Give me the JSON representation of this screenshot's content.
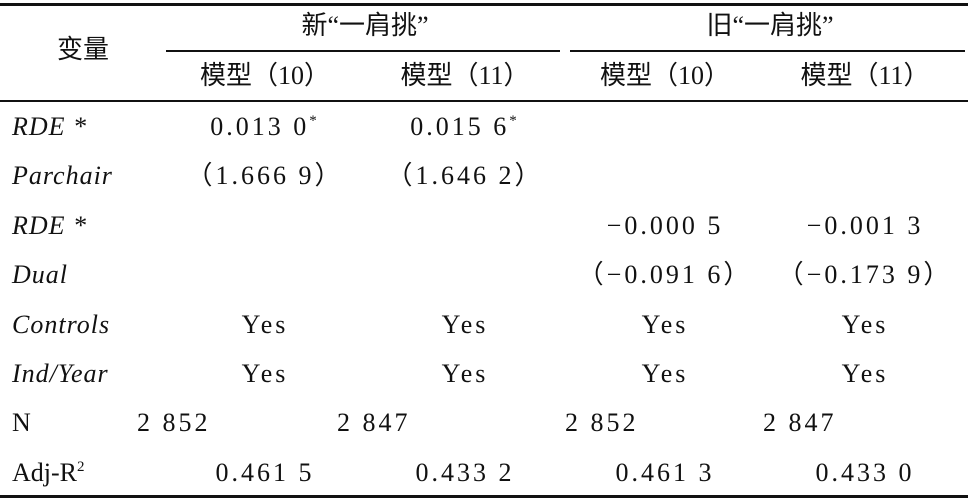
{
  "header": {
    "row_label": "变量",
    "groups": [
      "新“一肩挑”",
      "旧“一肩挑”"
    ],
    "columns": [
      "模型（10）",
      "模型（11）",
      "模型（10）",
      "模型（11）"
    ]
  },
  "table": {
    "rows": [
      {
        "label": "RDE *",
        "cells": [
          {
            "text": "0.013 0",
            "sup": "*"
          },
          {
            "text": "0.015 6",
            "sup": "*"
          },
          null,
          null
        ]
      },
      {
        "label": "Parchair",
        "cells": [
          "（1.666 9）",
          "（1.646 2）",
          null,
          null
        ]
      },
      {
        "label": "RDE *",
        "cells": [
          null,
          null,
          "−0.000 5",
          "−0.001 3"
        ]
      },
      {
        "label": "Dual",
        "cells": [
          null,
          null,
          "（−0.091 6）",
          "（−0.173 9）"
        ]
      },
      {
        "label": "Controls",
        "cells": [
          "Yes",
          "Yes",
          "Yes",
          "Yes"
        ]
      },
      {
        "label": "Ind/Year",
        "cells": [
          "Yes",
          "Yes",
          "Yes",
          "Yes"
        ]
      },
      {
        "label": "N",
        "cells": [
          "2 852",
          "2 847",
          "2 852",
          "2 847"
        ]
      },
      {
        "label": {
          "text": "Adj-R",
          "sup": "2"
        },
        "cells": [
          "0.461 5",
          "0.433 2",
          "0.461 3",
          "0.433 0"
        ]
      }
    ]
  }
}
